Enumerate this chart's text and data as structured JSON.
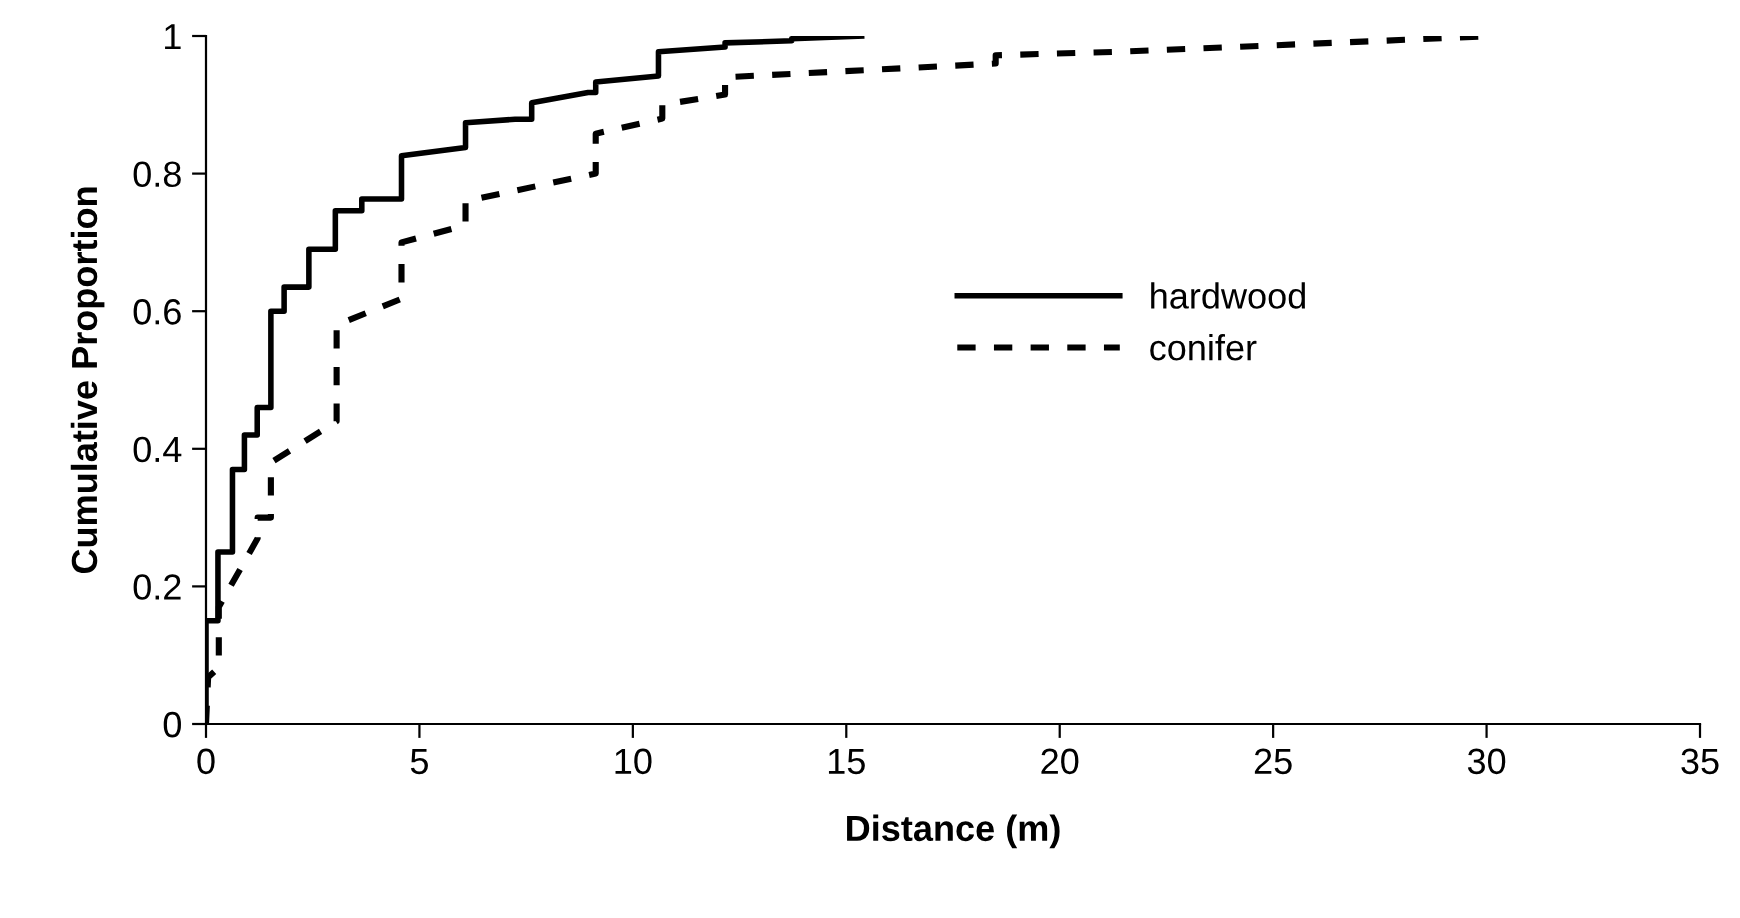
{
  "chart_data": {
    "type": "line",
    "xlabel": "Distance (m)",
    "ylabel": "Cumulative Proportion",
    "xlim": [
      0,
      35
    ],
    "xticks": [
      0,
      5,
      10,
      15,
      20,
      25,
      30,
      35
    ],
    "ylim": [
      0,
      1
    ],
    "yticks": [
      0,
      0.2,
      0.4,
      0.6,
      0.8,
      1
    ],
    "grid": false,
    "legend": "center",
    "marker": "none",
    "series": [
      {
        "name": "hardwood",
        "color": "#000000",
        "line_style": "solid",
        "x": [
          0,
          0,
          0.28,
          0.28,
          0.62,
          0.62,
          0.9,
          0.9,
          1.2,
          1.2,
          1.52,
          1.52,
          1.83,
          1.83,
          2.41,
          2.41,
          3.03,
          3.03,
          3.65,
          3.65,
          4.58,
          4.58,
          6.08,
          6.08,
          7.24,
          7.63,
          7.63,
          8.95,
          9.13,
          9.13,
          10.6,
          10.6,
          12.16,
          12.16,
          13.72,
          13.72,
          15.36
        ],
        "values": [
          0,
          0.15,
          0.15,
          0.25,
          0.25,
          0.37,
          0.37,
          0.42,
          0.42,
          0.46,
          0.46,
          0.6,
          0.6,
          0.635,
          0.635,
          0.69,
          0.69,
          0.746,
          0.746,
          0.763,
          0.763,
          0.826,
          0.838,
          0.874,
          0.879,
          0.879,
          0.903,
          0.918,
          0.918,
          0.933,
          0.942,
          0.977,
          0.984,
          0.99,
          0.993,
          0.996,
          1.0
        ]
      },
      {
        "name": "conifer",
        "color": "#000000",
        "line_style": "dashed",
        "x": [
          0,
          0.05,
          0.3,
          0.3,
          1.21,
          1.21,
          1.52,
          1.52,
          3.06,
          3.06,
          4.58,
          4.58,
          6.08,
          6.08,
          9.13,
          9.13,
          10.69,
          10.69,
          12.16,
          12.16,
          18.5,
          18.5,
          21.36,
          30.23
        ],
        "values": [
          0,
          0.068,
          0.082,
          0.17,
          0.27,
          0.3,
          0.3,
          0.38,
          0.44,
          0.58,
          0.618,
          0.7,
          0.725,
          0.76,
          0.8,
          0.858,
          0.88,
          0.9,
          0.915,
          0.94,
          0.96,
          0.972,
          0.977,
          1.0
        ]
      }
    ]
  }
}
